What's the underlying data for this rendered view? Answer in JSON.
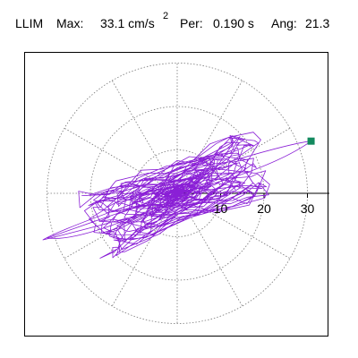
{
  "header": {
    "station": "LLIM",
    "max_label": "Max:",
    "max_value": "33.1 cm/s",
    "max_exponent": "2",
    "per_label": "Per:",
    "per_value": "0.190 s",
    "ang_label": "Ang:",
    "ang_value": "21.3"
  },
  "chart_data": {
    "type": "polar-trace",
    "radial_ticks": [
      "10",
      "20",
      "30"
    ],
    "radial_values": [
      10,
      20,
      30
    ],
    "max_point": {
      "radius": 33.1,
      "angle_deg": 21.3
    },
    "grid": "dotted",
    "trace_color": "#8a1fd6",
    "marker_color": "#138a5e"
  }
}
